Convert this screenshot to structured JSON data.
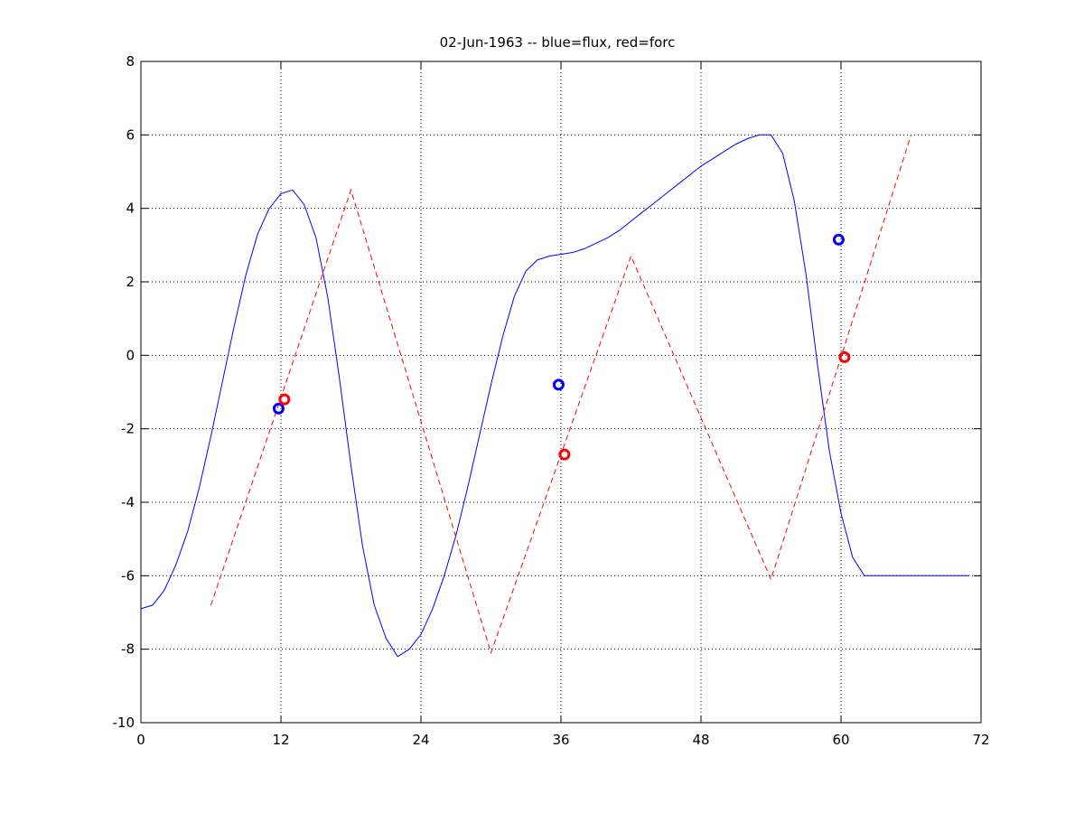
{
  "chart_data": {
    "type": "line",
    "title": "02-Jun-1963 -- blue=flux, red=forc",
    "xlabel": "",
    "ylabel": "",
    "xlim": [
      0,
      72
    ],
    "ylim": [
      -10,
      8
    ],
    "xticks": [
      0,
      12,
      24,
      36,
      48,
      60,
      72
    ],
    "yticks": [
      -10,
      -8,
      -6,
      -4,
      -2,
      0,
      2,
      4,
      6,
      8
    ],
    "grid": true,
    "gridlines_x": [
      12,
      24,
      36,
      48,
      60
    ],
    "gridlines_y": [
      -8,
      -6,
      -4,
      -2,
      0,
      2,
      4,
      6
    ],
    "colors": {
      "flux": "#0000ff",
      "forc": "#ff0000",
      "axis": "#000000",
      "grid": "#000000"
    },
    "series": [
      {
        "key": "flux",
        "style": "solid",
        "x": [
          0,
          1,
          2,
          3,
          4,
          5,
          6,
          7,
          8,
          9,
          10,
          11,
          12,
          13,
          14,
          15,
          16,
          17,
          18,
          19,
          20,
          21,
          22,
          23,
          24,
          25,
          26,
          27,
          28,
          29,
          30,
          31,
          32,
          33,
          34,
          35,
          36,
          37,
          38,
          39,
          40,
          41,
          42,
          43,
          44,
          45,
          46,
          47,
          48,
          49,
          50,
          51,
          52,
          53,
          54,
          55,
          56,
          57,
          58,
          59,
          60,
          61,
          62,
          63,
          64,
          65,
          66,
          67,
          68,
          69,
          70,
          71
        ],
        "y": [
          -6.9,
          -6.8,
          -6.4,
          -5.7,
          -4.8,
          -3.6,
          -2.2,
          -0.7,
          0.8,
          2.2,
          3.3,
          4.0,
          4.4,
          4.5,
          4.1,
          3.2,
          1.6,
          -0.6,
          -3.0,
          -5.2,
          -6.8,
          -7.7,
          -8.2,
          -8.0,
          -7.6,
          -6.9,
          -6.0,
          -4.9,
          -3.6,
          -2.2,
          -0.8,
          0.5,
          1.6,
          2.3,
          2.6,
          2.7,
          2.75,
          2.8,
          2.9,
          3.05,
          3.2,
          3.4,
          3.65,
          3.9,
          4.15,
          4.4,
          4.65,
          4.9,
          5.15,
          5.35,
          5.55,
          5.75,
          5.9,
          6.0,
          6.0,
          5.5,
          4.2,
          2.2,
          -0.3,
          -2.6,
          -4.3,
          -5.5,
          -6.0,
          -6.0,
          -6.0,
          -6.0,
          -6.0,
          -6.0,
          -6.0,
          -6.0,
          -6.0,
          -6.0
        ]
      },
      {
        "key": "forc",
        "style": "dashed",
        "x": [
          6,
          18,
          30,
          42,
          54,
          66
        ],
        "y": [
          -6.8,
          4.5,
          -8.1,
          2.7,
          -6.1,
          6.0
        ]
      }
    ],
    "markers": [
      {
        "key": "flux",
        "x": [
          11.8,
          35.8,
          59.8
        ],
        "y": [
          -1.45,
          -0.8,
          3.15
        ]
      },
      {
        "key": "forc",
        "x": [
          12.3,
          36.3,
          60.3
        ],
        "y": [
          -1.2,
          -2.7,
          -0.05
        ]
      }
    ]
  }
}
